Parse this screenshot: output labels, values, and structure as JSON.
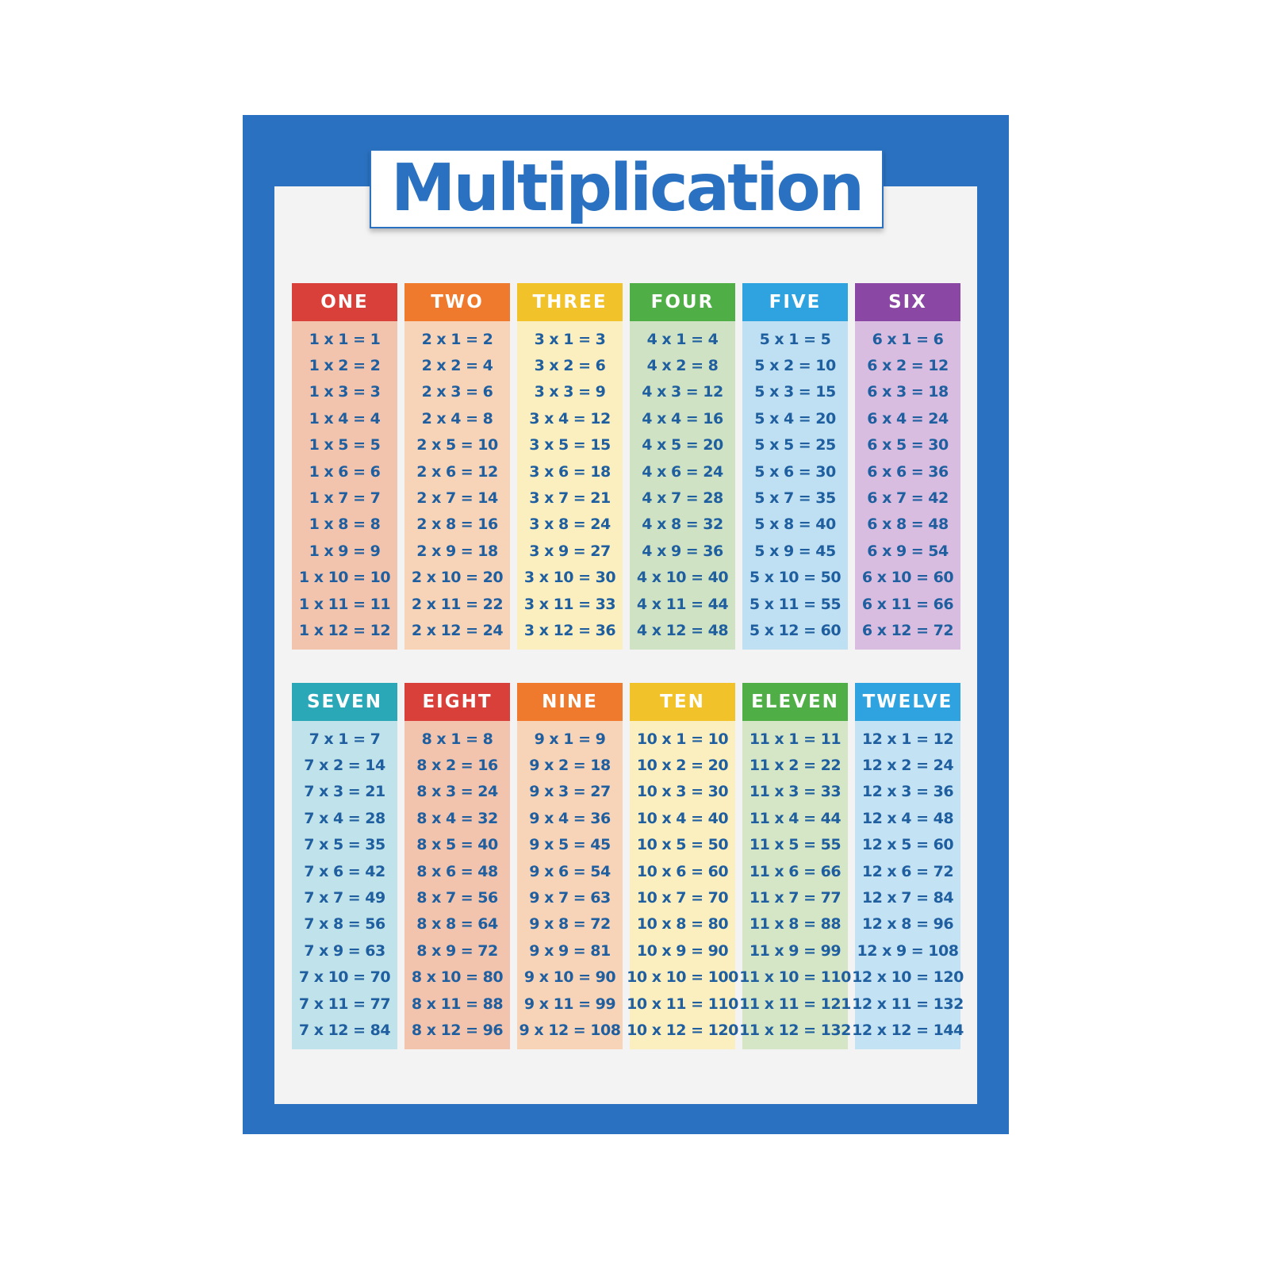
{
  "poster": {
    "title": "Multiplication",
    "frame_color": "#2a72c1",
    "text_color": "#1f5f9f",
    "tables": [
      {
        "label": "ONE",
        "header_color": "#d9403a",
        "body_color": "#f2c4ae",
        "rows": [
          "1 x 1 = 1",
          "1 x 2 = 2",
          "1 x 3 = 3",
          "1 x 4 = 4",
          "1 x 5 = 5",
          "1 x 6 = 6",
          "1 x 7 = 7",
          "1 x 8 = 8",
          "1 x 9 = 9",
          "1 x 10 = 10",
          "1 x 11 = 11",
          "1 x 12 = 12"
        ]
      },
      {
        "label": "TWO",
        "header_color": "#ef7a2e",
        "body_color": "#f7d3b8",
        "rows": [
          "2 x 1 = 2",
          "2 x 2 = 4",
          "2 x 3 = 6",
          "2 x 4 = 8",
          "2 x 5 = 10",
          "2 x 6 = 12",
          "2 x 7 = 14",
          "2 x 8 = 16",
          "2 x 9 = 18",
          "2 x 10 = 20",
          "2 x 11 = 22",
          "2 x 12 = 24"
        ]
      },
      {
        "label": "THREE",
        "header_color": "#f2c22a",
        "body_color": "#fbefc0",
        "rows": [
          "3 x 1 = 3",
          "3 x 2 = 6",
          "3 x 3 = 9",
          "3 x 4 = 12",
          "3 x 5 = 15",
          "3 x 6 = 18",
          "3 x 7 = 21",
          "3 x 8 = 24",
          "3 x 9 = 27",
          "3 x 10 = 30",
          "3 x 11 = 33",
          "3 x 12 = 36"
        ]
      },
      {
        "label": "FOUR",
        "header_color": "#4fae46",
        "body_color": "#cfe3c4",
        "rows": [
          "4 x 1 = 4",
          "4 x 2 = 8",
          "4 x 3 = 12",
          "4 x 4 = 16",
          "4 x 5 = 20",
          "4 x 6 = 24",
          "4 x 7 = 28",
          "4 x 8 = 32",
          "4 x 9 = 36",
          "4 x 10 = 40",
          "4 x 11 = 44",
          "4 x 12 = 48"
        ]
      },
      {
        "label": "FIVE",
        "header_color": "#2fa3e0",
        "body_color": "#bfe0f2",
        "rows": [
          "5 x 1 = 5",
          "5 x 2 = 10",
          "5 x 3 = 15",
          "5 x 4 = 20",
          "5 x 5 = 25",
          "5 x 6 = 30",
          "5 x 7 = 35",
          "5 x 8 = 40",
          "5 x 9 = 45",
          "5 x 10 = 50",
          "5 x 11 = 55",
          "5 x 12 = 60"
        ]
      },
      {
        "label": "SIX",
        "header_color": "#8a47a3",
        "body_color": "#d8bde0",
        "rows": [
          "6 x 1 = 6",
          "6 x 2 = 12",
          "6 x 3 = 18",
          "6 x 4 = 24",
          "6 x 5 = 30",
          "6 x 6 = 36",
          "6 x 7 = 42",
          "6 x 8 = 48",
          "6 x 9 = 54",
          "6 x 10 = 60",
          "6 x 11 = 66",
          "6 x 12 = 72"
        ]
      },
      {
        "label": "SEVEN",
        "header_color": "#2aa8b8",
        "body_color": "#c0e2ea",
        "rows": [
          "7 x 1 = 7",
          "7 x 2 = 14",
          "7 x 3 = 21",
          "7 x 4 = 28",
          "7 x 5 = 35",
          "7 x 6 = 42",
          "7 x 7 = 49",
          "7 x 8 = 56",
          "7 x 9 = 63",
          "7 x 10 = 70",
          "7 x 11 = 77",
          "7 x 12 = 84"
        ]
      },
      {
        "label": "EIGHT",
        "header_color": "#d9403a",
        "body_color": "#f2c4ae",
        "rows": [
          "8 x 1 = 8",
          "8 x 2 = 16",
          "8 x 3 = 24",
          "8 x 4 = 32",
          "8 x 5 = 40",
          "8 x 6 = 48",
          "8 x 7 = 56",
          "8 x 8 = 64",
          "8 x 9 = 72",
          "8 x 10 = 80",
          "8 x 11 = 88",
          "8 x 12 = 96"
        ]
      },
      {
        "label": "NINE",
        "header_color": "#ef7a2e",
        "body_color": "#f7d3b8",
        "rows": [
          "9 x 1 = 9",
          "9 x 2 = 18",
          "9 x 3 = 27",
          "9 x 4 = 36",
          "9 x 5 = 45",
          "9 x 6 = 54",
          "9 x 7 = 63",
          "9 x 8 = 72",
          "9 x 9 = 81",
          "9 x 10 = 90",
          "9 x 11 = 99",
          "9 x 12 = 108"
        ]
      },
      {
        "label": "TEN",
        "header_color": "#f2c22a",
        "body_color": "#fbefc0",
        "rows": [
          "10 x 1 = 10",
          "10 x 2 = 20",
          "10 x 3 = 30",
          "10 x 4 = 40",
          "10 x 5 = 50",
          "10 x 6 = 60",
          "10 x 7 = 70",
          "10 x 8 = 80",
          "10 x 9 = 90",
          "10 x 10 = 100",
          "10 x 11 = 110",
          "10 x 12 = 120"
        ]
      },
      {
        "label": "ELEVEN",
        "header_color": "#4fae46",
        "body_color": "#d5e6c6",
        "rows": [
          "11 x 1 = 11",
          "11 x 2 = 22",
          "11 x 3 = 33",
          "11 x 4 = 44",
          "11 x 5 = 55",
          "11 x 6 = 66",
          "11 x 7 = 77",
          "11 x 8 = 88",
          "11 x 9 = 99",
          "11 x 10 = 110",
          "11 x 11 = 121",
          "11 x 12 = 132"
        ]
      },
      {
        "label": "TWELVE",
        "header_color": "#2fa3e0",
        "body_color": "#c3e2f4",
        "rows": [
          "12 x 1 = 12",
          "12 x 2 = 24",
          "12 x 3 = 36",
          "12 x 4 = 48",
          "12 x 5 = 60",
          "12 x 6 = 72",
          "12 x 7 = 84",
          "12 x 8 = 96",
          "12 x 9 = 108",
          "12 x 10 = 120",
          "12 x 11 = 132",
          "12 x 12 = 144"
        ]
      }
    ]
  }
}
